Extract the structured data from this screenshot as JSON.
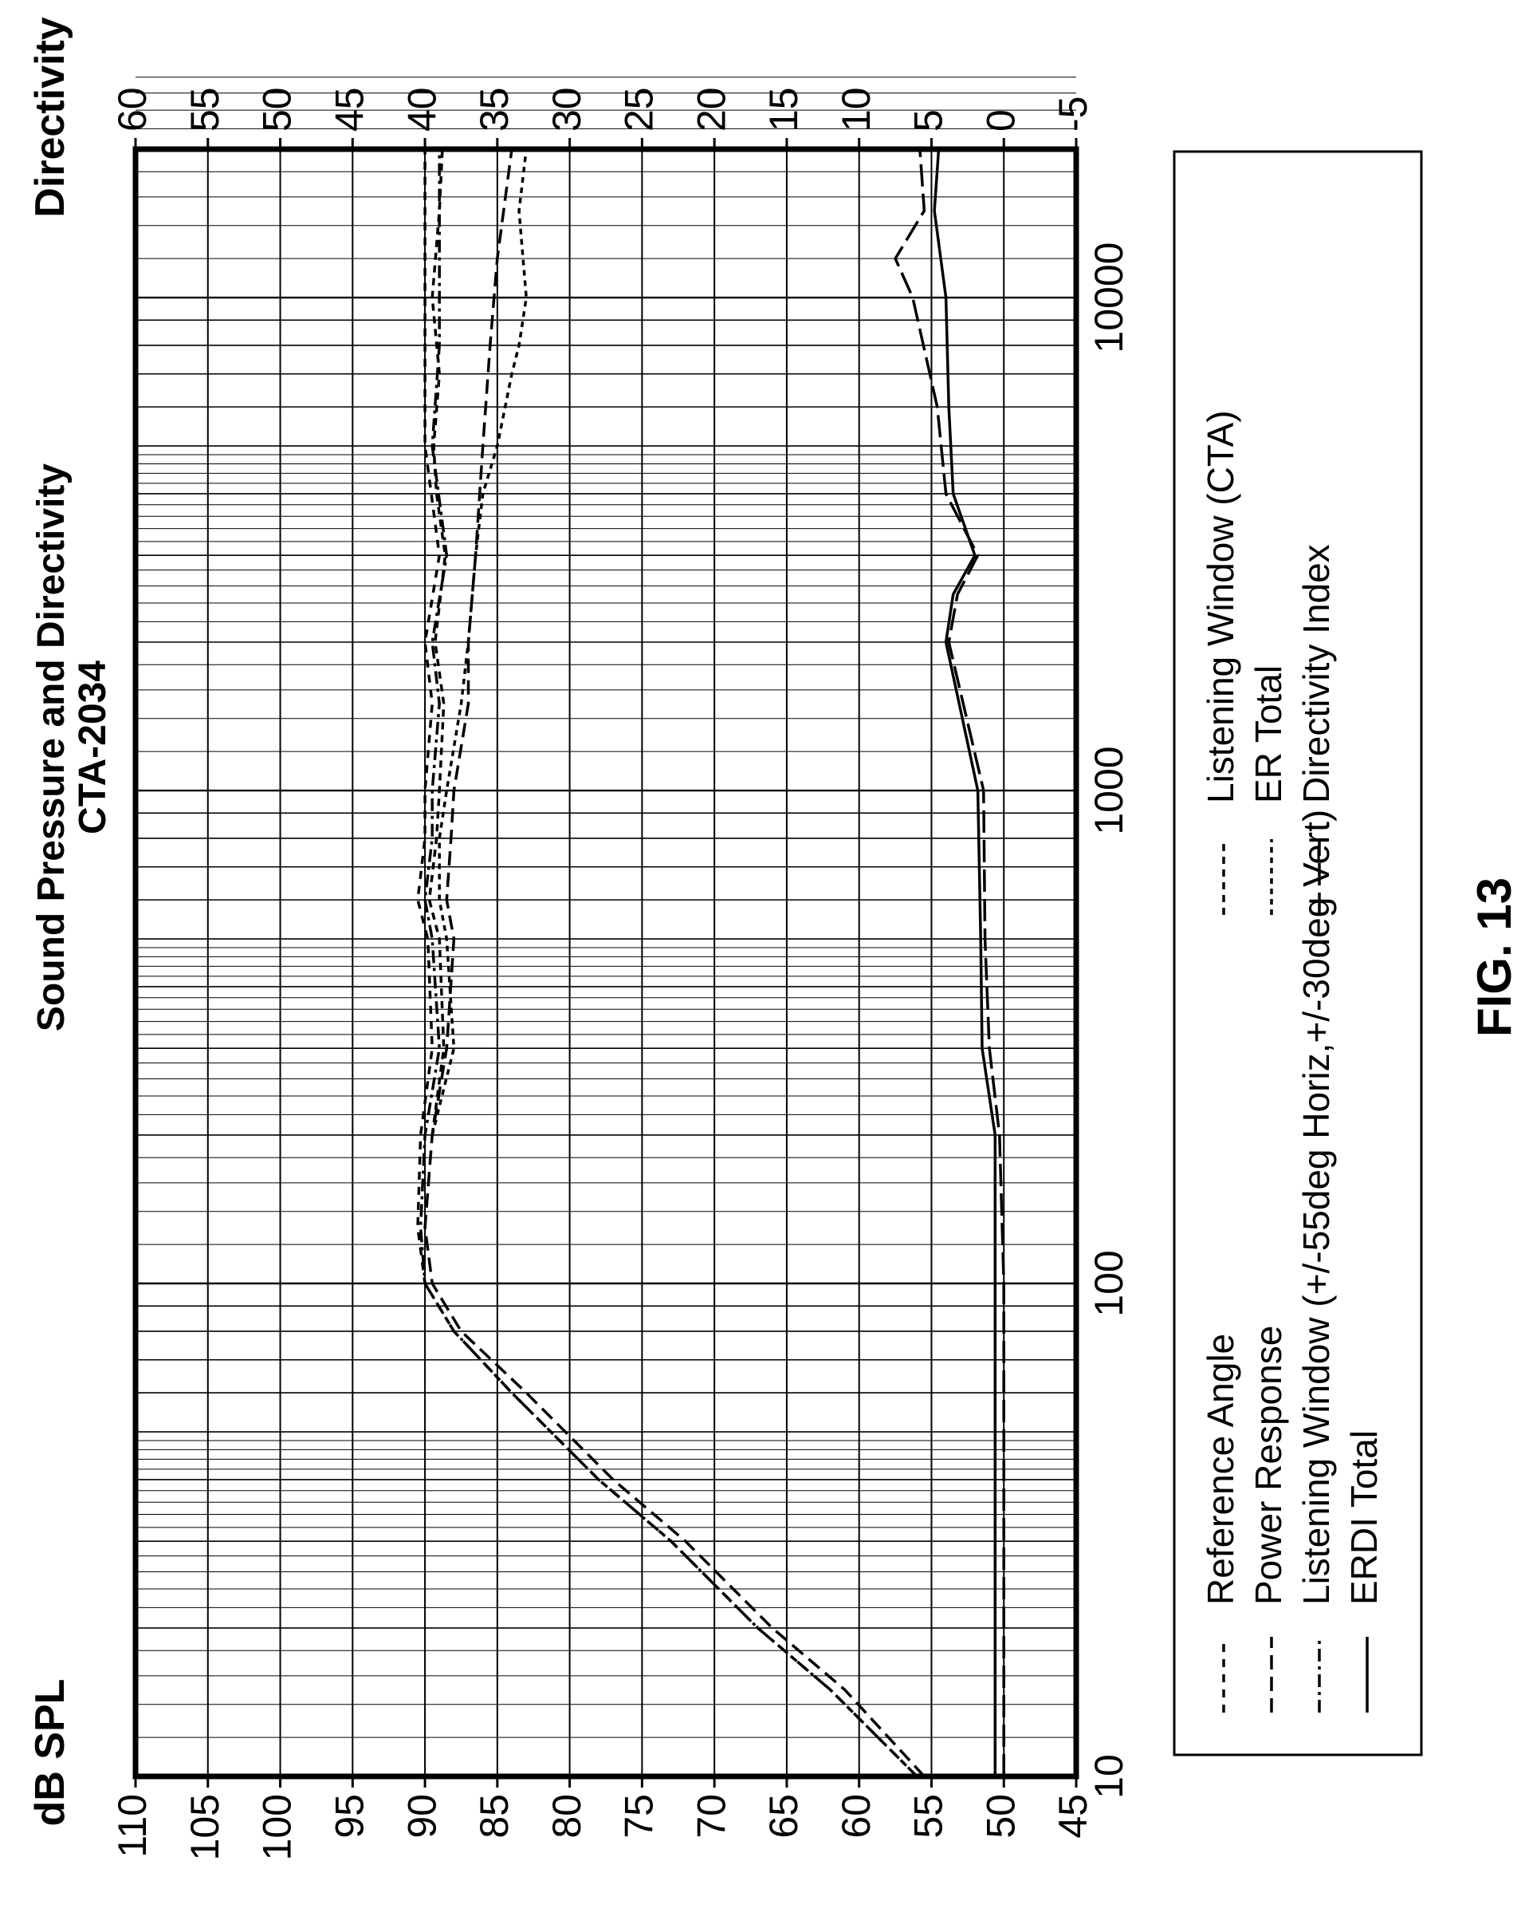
{
  "figure_label": "FIG. 13",
  "chart_data": {
    "type": "line",
    "title": "Sound Pressure and Directivity",
    "subtitle": "CTA-2034",
    "xscale": "log",
    "xlim": [
      10,
      20000
    ],
    "xticks": [
      10,
      100,
      1000,
      10000
    ],
    "xtick_labels": [
      "10",
      "100",
      "1000",
      "10000"
    ],
    "ylabel_left": "dB SPL",
    "ylim_left": [
      45,
      110
    ],
    "yticks_left": [
      "110",
      "105",
      "100",
      "95",
      "90",
      "85",
      "80",
      "75",
      "70",
      "65",
      "60",
      "55",
      "50",
      "45"
    ],
    "ylabel_right": "Directivity",
    "ylim_right": [
      -5,
      60
    ],
    "yticks_right": [
      "60",
      "55",
      "50",
      "45",
      "40",
      "35",
      "30",
      "25",
      "20",
      "15",
      "10",
      "5",
      "0",
      "-5"
    ],
    "grid": true,
    "legend": {
      "placement": "bottom",
      "left_column": [
        "Reference Angle",
        "Power Response",
        "Listening Window (+/-55deg Horiz,+/-30deg Vert)",
        "ERDI Total"
      ],
      "right_column": [
        "Listening Window (CTA)",
        "ER Total",
        "Directivity Index"
      ]
    },
    "series": [
      {
        "name": "Reference Angle",
        "axis": "left",
        "dash": "10 9",
        "x": [
          10,
          15,
          20,
          30,
          40,
          60,
          80,
          100,
          130,
          200,
          300,
          500,
          600,
          800,
          1000,
          1500,
          2000,
          3000,
          5000,
          8000,
          12000,
          20000
        ],
        "y": [
          56,
          62,
          67,
          73,
          78,
          84,
          88,
          90,
          90.5,
          90.3,
          89.5,
          89.8,
          90.5,
          90,
          90,
          89.5,
          90,
          89,
          90,
          90,
          90,
          90
        ]
      },
      {
        "name": "Power Response",
        "axis": "left",
        "dash": "18 9",
        "x": [
          10,
          15,
          20,
          30,
          40,
          60,
          80,
          100,
          130,
          200,
          300,
          500,
          600,
          800,
          1000,
          1500,
          2000,
          3000,
          5000,
          8000,
          12000,
          20000
        ],
        "y": [
          55.5,
          61,
          66,
          72,
          77,
          83,
          87.5,
          89.5,
          90,
          89.5,
          88.5,
          88,
          88.5,
          88.2,
          88,
          87,
          87,
          86.5,
          86,
          85.5,
          85,
          84
        ]
      },
      {
        "name": "Listening Window (+/-55deg Horiz,+/-30deg Vert)",
        "axis": "left",
        "dash": "16 6 4 6",
        "x": [
          10,
          15,
          20,
          30,
          40,
          60,
          80,
          100,
          130,
          200,
          300,
          500,
          600,
          800,
          1000,
          1500,
          2000,
          3000,
          5000,
          8000,
          12000,
          20000
        ],
        "y": [
          56,
          62,
          67,
          73,
          78,
          84,
          88,
          90,
          90.3,
          90,
          89,
          89.5,
          90,
          89.5,
          89.5,
          89,
          89.5,
          88.5,
          89.5,
          89,
          89,
          89
        ]
      },
      {
        "name": "ERDI Total",
        "axis": "right",
        "dash": "",
        "x": [
          10,
          100,
          200,
          300,
          500,
          1000,
          2000,
          2500,
          3000,
          4000,
          6000,
          10000,
          15000,
          20000
        ],
        "y": [
          0.6,
          0.6,
          0.6,
          1.5,
          1.6,
          1.8,
          4,
          3.5,
          2,
          3.5,
          3.8,
          4,
          4.8,
          4.5
        ]
      },
      {
        "name": "Listening Window (CTA)",
        "axis": "left",
        "dash": "9 7",
        "x": [
          200,
          300,
          500,
          600,
          800,
          1000,
          1500,
          2000,
          3000,
          4000,
          5000,
          7000,
          10000,
          15000,
          20000
        ],
        "y": [
          89.5,
          88.7,
          89,
          89.7,
          89.2,
          89,
          88.7,
          89.3,
          88.6,
          89.2,
          89.4,
          89,
          89.5,
          89,
          88.8
        ]
      },
      {
        "name": "ER Total",
        "axis": "left",
        "dash": "7 6",
        "x": [
          200,
          300,
          500,
          600,
          800,
          1000,
          1500,
          2000,
          3000,
          4000,
          5000,
          7000,
          8000,
          10000,
          15000,
          20000
        ],
        "y": [
          89.5,
          88,
          88.5,
          89,
          89,
          88.5,
          87.5,
          87,
          86.5,
          86,
          85,
          84,
          83.5,
          83,
          83.5,
          83
        ]
      },
      {
        "name": "Directivity Index",
        "axis": "right",
        "dash": "28 9",
        "x": [
          10,
          100,
          200,
          300,
          500,
          1000,
          2000,
          2500,
          3000,
          4000,
          6000,
          10000,
          12000,
          15000,
          20000
        ],
        "y": [
          0,
          0,
          0.3,
          1,
          1.3,
          1.4,
          3.8,
          3.2,
          1.8,
          4,
          4.6,
          6.3,
          7.5,
          5.5,
          5.8
        ]
      }
    ]
  }
}
